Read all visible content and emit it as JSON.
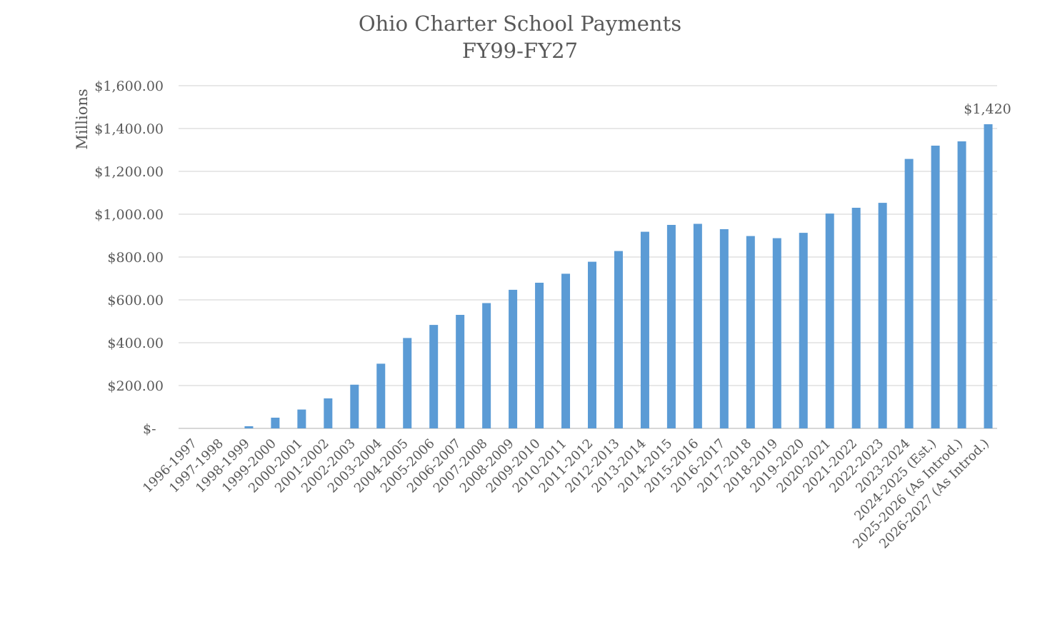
{
  "chart_data": {
    "type": "bar",
    "title": [
      "Ohio Charter School Payments",
      "FY99-FY27"
    ],
    "xlabel": "",
    "ylabel": "Millions",
    "ylim": [
      0,
      1600
    ],
    "yticks": [
      0,
      200,
      400,
      600,
      800,
      1000,
      1200,
      1400,
      1600
    ],
    "ytick_labels": [
      "$-",
      "$200.00",
      "$400.00",
      "$600.00",
      "$800.00",
      "$1,000.00",
      "$1,200.00",
      "$1,400.00",
      "$1,600.00"
    ],
    "grid": true,
    "legend": "none",
    "bar_color": "#5B9BD5",
    "categories": [
      "1996-1997",
      "1997-1998",
      "1998-1999",
      "1999-2000",
      "2000-2001",
      "2001-2002",
      "2002-2003",
      "2003-2004",
      "2004-2005",
      "2005-2006",
      "2006-2007",
      "2007-2008",
      "2008-2009",
      "2009-2010",
      "2010-2011",
      "2011-2012",
      "2012-2013",
      "2013-2014",
      "2014-2015",
      "2015-2016",
      "2016-2017",
      "2017-2018",
      "2018-2019",
      "2019-2020",
      "2020-2021",
      "2021-2022",
      "2022-2023",
      "2023-2024",
      "2024-2025 (Est.)",
      "2025-2026 (As Introd.)",
      "2026-2027 (As Introd.)"
    ],
    "values": [
      0,
      0,
      10,
      50,
      88,
      140,
      204,
      302,
      422,
      483,
      530,
      585,
      647,
      680,
      722,
      778,
      828,
      918,
      950,
      955,
      930,
      898,
      888,
      913,
      1003,
      1030,
      1053,
      1258,
      1320,
      1340,
      1420
    ],
    "data_labels": [
      {
        "index": 30,
        "text": "$1,420"
      }
    ]
  }
}
